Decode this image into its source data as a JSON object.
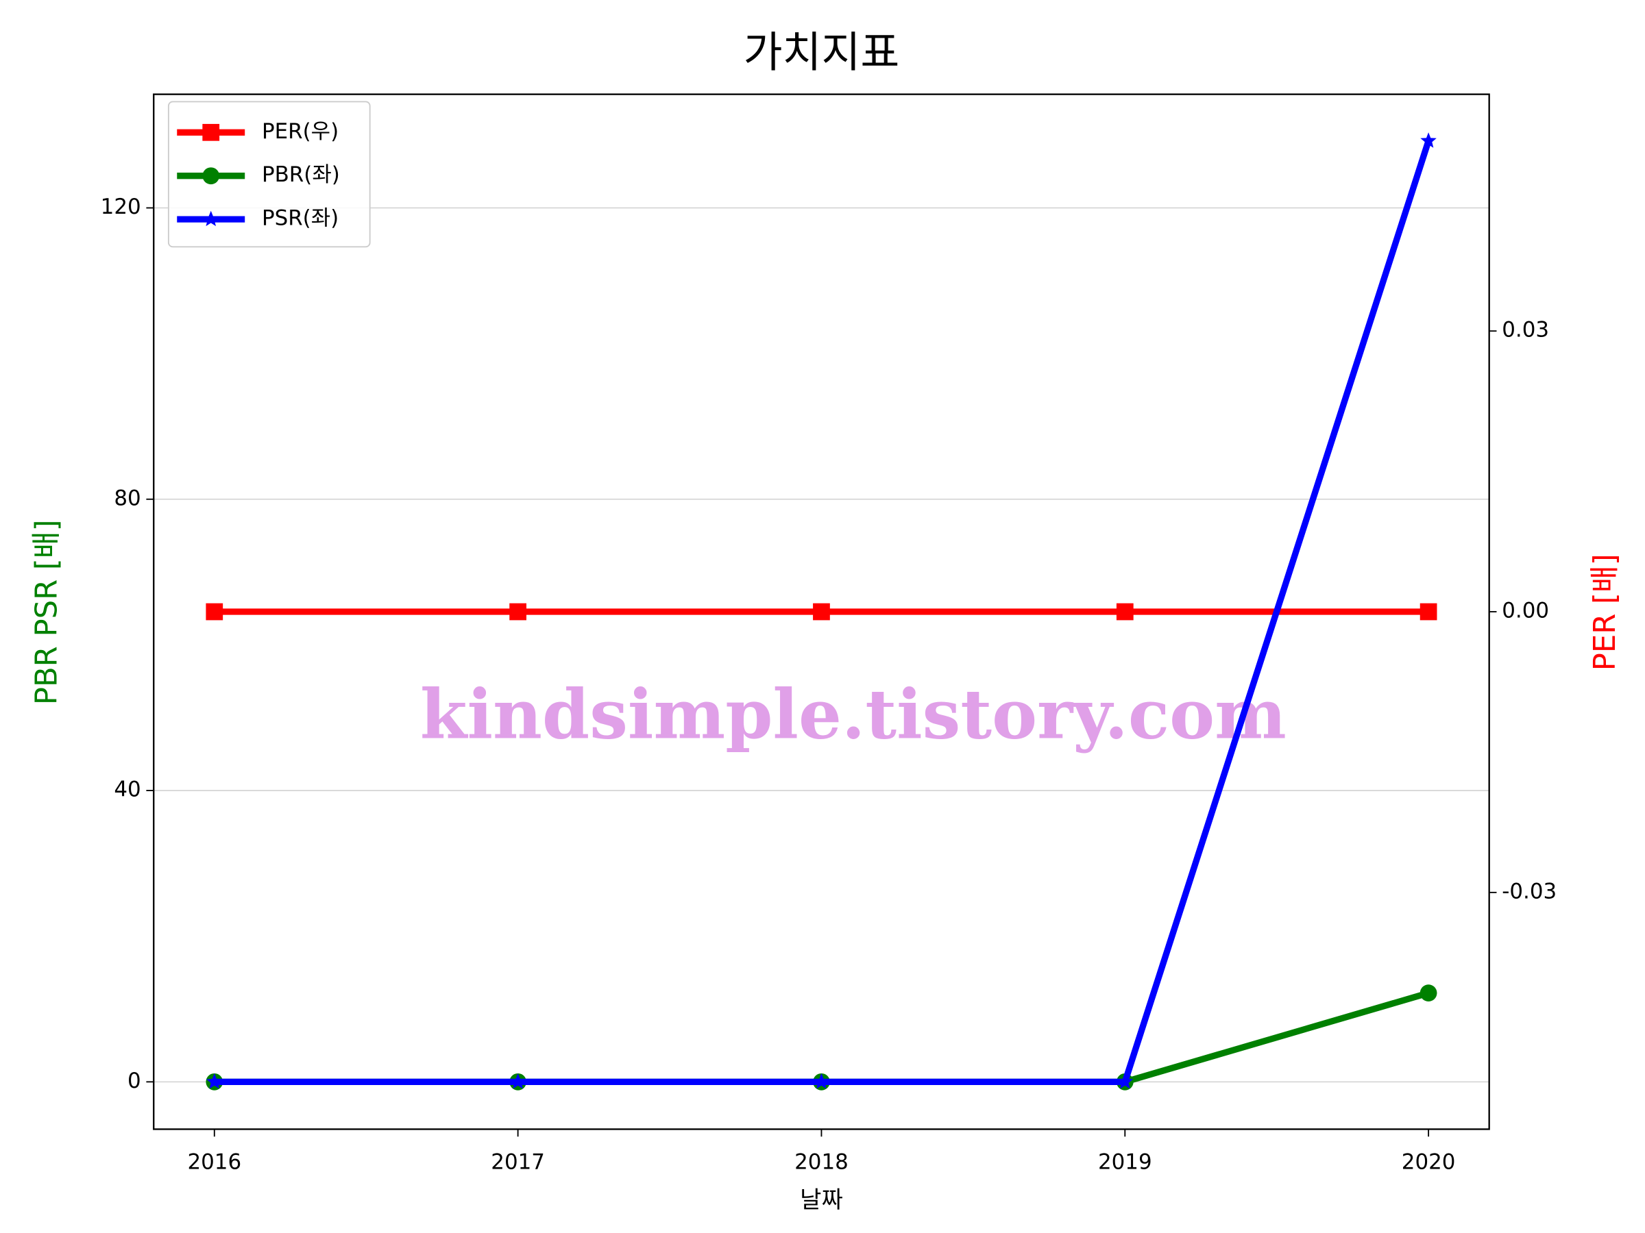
{
  "chart_data": {
    "type": "line",
    "title": "가치지표",
    "x_label": "날짜",
    "y_label": "PBR PSR [배]",
    "y2_label": "PER [배]",
    "annotation": "kindsimple.tistory.com",
    "x": [
      2016,
      2017,
      2018,
      2019,
      2020
    ],
    "xlim": [
      2015.8,
      2020.2
    ],
    "xticks": [
      2016,
      2017,
      2018,
      2019,
      2020
    ],
    "ylim": [
      -6.5,
      135.6
    ],
    "yticks": [
      0,
      40,
      80,
      120
    ],
    "y2lim": [
      -0.0553,
      0.0553
    ],
    "y2ticks": [
      -0.03,
      {
        "value": 0,
        "label": "0.00"
      },
      0.03
    ],
    "grid": true,
    "legend": "upper left",
    "series": [
      {
        "name": "PER(우)",
        "color": "#ff0000",
        "marker": "square",
        "axis": "y2",
        "values": [
          0,
          0,
          0,
          0,
          0
        ]
      },
      {
        "name": "PBR(좌)",
        "color": "#008000",
        "marker": "circle",
        "values": [
          0,
          0,
          0,
          0,
          12.2
        ]
      },
      {
        "name": "PSR(좌)",
        "color": "#0000ff",
        "marker": "star",
        "values": [
          0,
          0,
          0,
          0,
          129.2
        ]
      }
    ]
  }
}
